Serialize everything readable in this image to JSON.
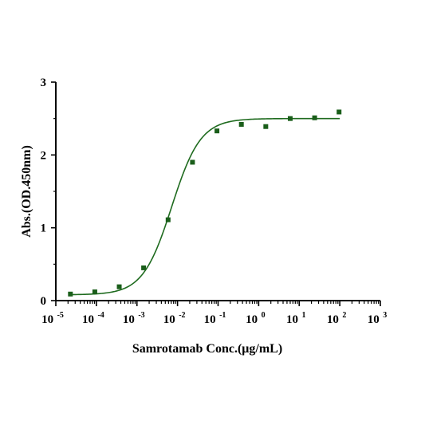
{
  "chart_data": {
    "type": "scatter",
    "title": "",
    "xlabel": "Samrotamab Conc.(μg/mL)",
    "ylabel": "Abs.(OD.450nm)",
    "x_scale": "log10",
    "xlim": [
      1e-05,
      1000
    ],
    "ylim": [
      0,
      3
    ],
    "x_ticks": [
      {
        "base": "10",
        "exp": "-5",
        "value": 1e-05
      },
      {
        "base": "10",
        "exp": "-4",
        "value": 0.0001
      },
      {
        "base": "10",
        "exp": "-3",
        "value": 0.001
      },
      {
        "base": "10",
        "exp": "-2",
        "value": 0.01
      },
      {
        "base": "10",
        "exp": "-1",
        "value": 0.1
      },
      {
        "base": "10",
        "exp": "0",
        "value": 1
      },
      {
        "base": "10",
        "exp": "1",
        "value": 10
      },
      {
        "base": "10",
        "exp": "2",
        "value": 100
      },
      {
        "base": "10",
        "exp": "3",
        "value": 1000
      }
    ],
    "y_ticks": [
      {
        "label": "0",
        "value": 0
      },
      {
        "label": "1",
        "value": 1
      },
      {
        "label": "2",
        "value": 2
      },
      {
        "label": "3",
        "value": 3
      }
    ],
    "grid": false,
    "legend": "none",
    "color": "#1f6b1f",
    "marker_color": "#1a5e1a",
    "series": [
      {
        "points": [
          {
            "x": 2.29e-05,
            "y": 0.09
          },
          {
            "x": 9.16e-05,
            "y": 0.12
          },
          {
            "x": 0.000366,
            "y": 0.19
          },
          {
            "x": 0.00146,
            "y": 0.45
          },
          {
            "x": 0.00586,
            "y": 1.11
          },
          {
            "x": 0.0234,
            "y": 1.9
          },
          {
            "x": 0.0938,
            "y": 2.33
          },
          {
            "x": 0.375,
            "y": 2.42
          },
          {
            "x": 1.5,
            "y": 2.39
          },
          {
            "x": 6.0,
            "y": 2.5
          },
          {
            "x": 24.0,
            "y": 2.51
          },
          {
            "x": 96.0,
            "y": 2.59
          }
        ]
      }
    ],
    "fit": {
      "model": "4PL",
      "bottom": 0.08,
      "top": 2.5,
      "ec50": 0.0072,
      "hill": 1.22,
      "x_range": [
        2.29e-05,
        100
      ]
    }
  }
}
